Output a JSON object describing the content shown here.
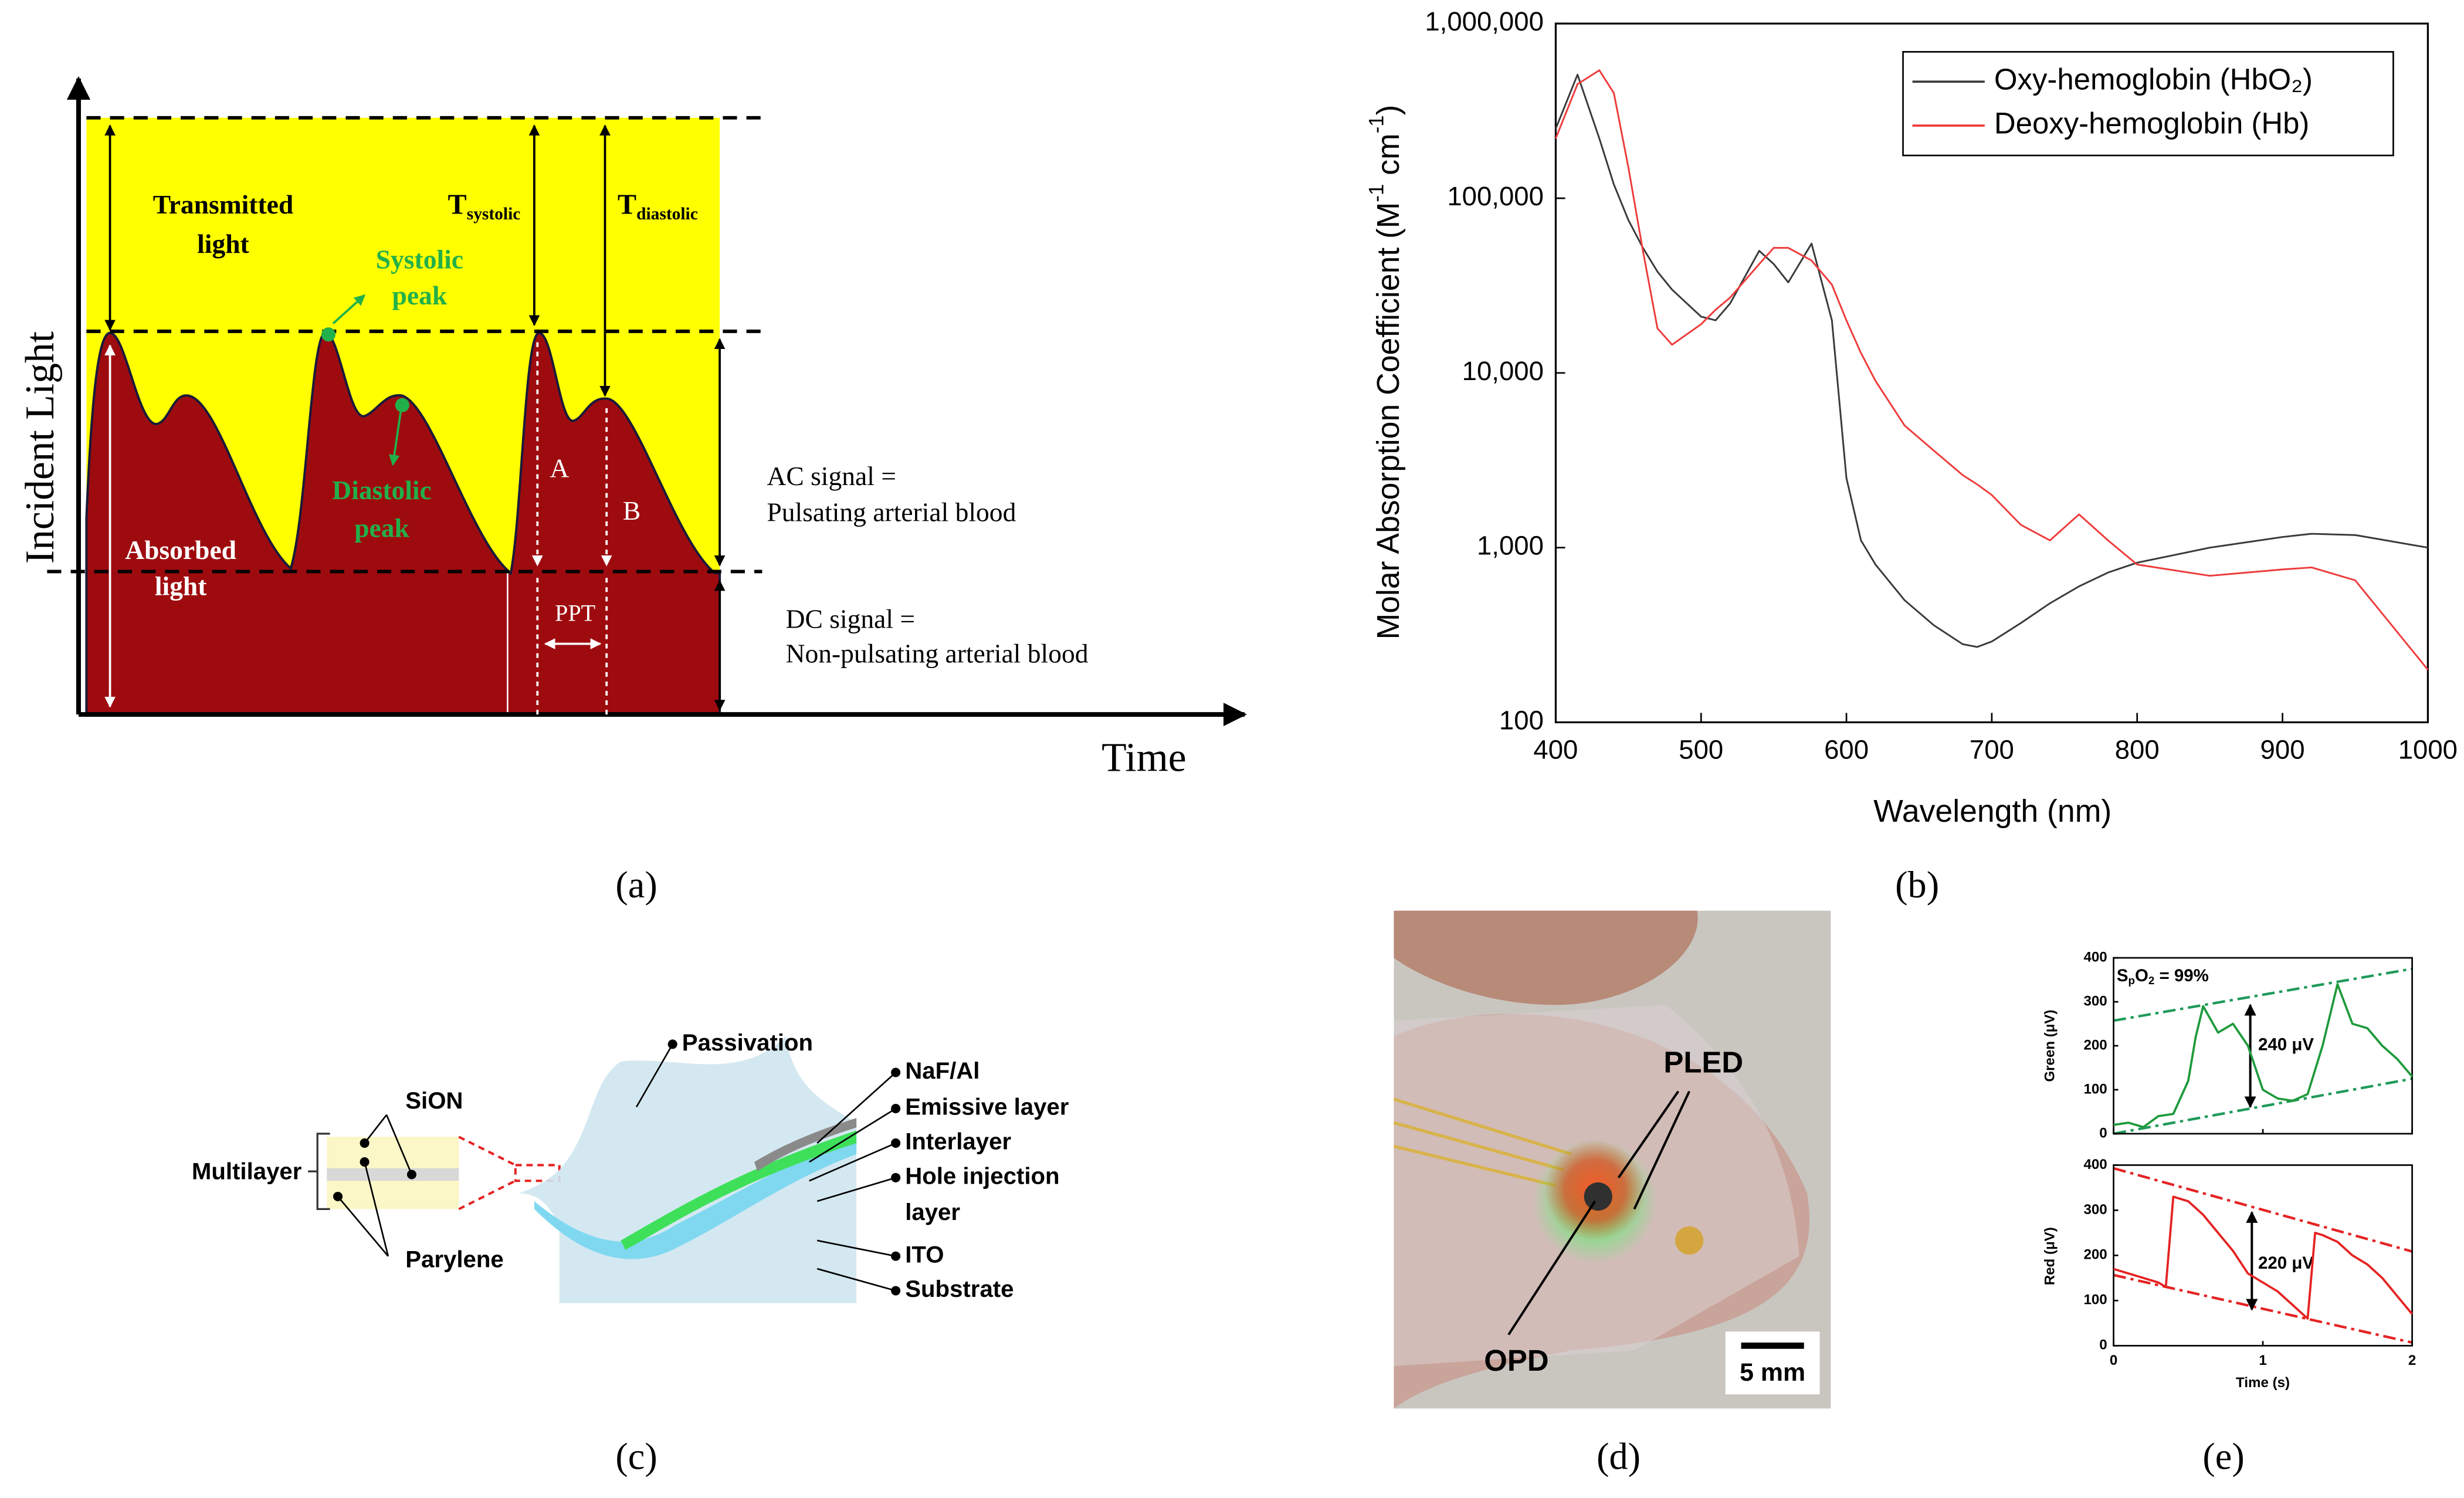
{
  "panel_labels": [
    "(a)",
    "(b)",
    "(c)",
    "(d)",
    "(e)"
  ],
  "diagram_a": {
    "y_axis_label": "Incident Light",
    "x_axis_label": "Time",
    "transmitted": [
      "Transmitted",
      "light"
    ],
    "systolic_peak": [
      "Systolic",
      "peak"
    ],
    "diastolic_peak": [
      "Diastolic",
      "peak"
    ],
    "absorbed": [
      "Absorbed",
      "light"
    ],
    "t_systolic": [
      "T",
      "systolic"
    ],
    "t_diastolic": [
      "T",
      "diastolic"
    ],
    "a": "A",
    "b": "B",
    "ppt": "PPT",
    "ac": [
      "AC signal =",
      "Pulsating arterial blood"
    ],
    "dc": [
      "DC signal =",
      "Non-pulsating arterial blood"
    ]
  },
  "chart_data": [
    {
      "type": "line",
      "x_label": "Wavelength (nm)",
      "y_label": [
        "Molar Absorption Coefficient (M",
        "-1",
        " cm",
        "-1",
        ")"
      ],
      "log_y": true,
      "legend": "upper right",
      "x": [
        400,
        415,
        430,
        440,
        450,
        460,
        470,
        480,
        500,
        510,
        520,
        540,
        550,
        560,
        576,
        590,
        600,
        610,
        620,
        640,
        660,
        680,
        690,
        700,
        720,
        740,
        760,
        780,
        800,
        850,
        900,
        920,
        950,
        1000
      ],
      "series": [
        {
          "name": "Oxy-hemoglobin (HbO₂)",
          "color": "#3a3a3a",
          "values": [
            250000,
            510000,
            220000,
            120000,
            75000,
            52000,
            38000,
            30000,
            21000,
            20000,
            25000,
            50000,
            42000,
            33000,
            55000,
            20000,
            2500,
            1100,
            800,
            500,
            360,
            280,
            270,
            290,
            370,
            480,
            600,
            720,
            820,
            1000,
            1150,
            1200,
            1180,
            1000
          ]
        },
        {
          "name": "Deoxy-hemoglobin (Hb)",
          "color": "#ee3b3b",
          "values": [
            220000,
            450000,
            540000,
            400000,
            150000,
            50000,
            18000,
            14500,
            19000,
            23000,
            27000,
            42000,
            52000,
            52000,
            44000,
            32000,
            20000,
            13000,
            9000,
            5000,
            3600,
            2600,
            2300,
            2000,
            1350,
            1100,
            1550,
            1100,
            800,
            690,
            750,
            770,
            650,
            200
          ]
        }
      ],
      "xlim": [
        400,
        1000
      ],
      "xticks": [
        400,
        500,
        600,
        700,
        800,
        900,
        1000
      ],
      "ylim": [
        100,
        1000000
      ],
      "yticks": [
        100,
        {
          "value": 1000,
          "label": "1,000"
        },
        {
          "value": 10000,
          "label": "10,000"
        },
        {
          "value": 100000,
          "label": "100,000"
        },
        {
          "value": 1000000,
          "label": "1,000,000"
        }
      ]
    },
    {
      "type": "line",
      "y_label": "Green (μV)",
      "annotations": [
        [
          "S",
          "p",
          "O",
          "2",
          " = 99%"
        ],
        "240 μV"
      ],
      "x": [
        0,
        0.1,
        0.2,
        0.3,
        0.4,
        0.5,
        0.55,
        0.6,
        0.7,
        0.8,
        0.9,
        1.0,
        1.1,
        1.2,
        1.3,
        1.4,
        1.5,
        1.6,
        1.7,
        1.8,
        1.9,
        2.0
      ],
      "series": [
        {
          "color": "#1e9a3c",
          "values": [
            20,
            25,
            15,
            40,
            45,
            120,
            220,
            290,
            230,
            250,
            200,
            100,
            80,
            75,
            90,
            200,
            340,
            250,
            240,
            200,
            170,
            130
          ]
        }
      ],
      "xlim": [
        0,
        2
      ],
      "xticks": [
        0,
        1,
        2
      ],
      "ylim": [
        0,
        400
      ],
      "yticks": [
        0,
        100,
        200,
        300,
        400
      ]
    },
    {
      "type": "line",
      "y_label": "Red (μV)",
      "x_label": "Time (s)",
      "annotations": [
        "220 μV"
      ],
      "x": [
        0,
        0.1,
        0.2,
        0.3,
        0.35,
        0.4,
        0.5,
        0.6,
        0.7,
        0.8,
        0.9,
        1.0,
        1.1,
        1.2,
        1.3,
        1.35,
        1.4,
        1.5,
        1.6,
        1.7,
        1.8,
        1.9,
        2.0
      ],
      "series": [
        {
          "color": "#e52222",
          "values": [
            170,
            160,
            150,
            140,
            130,
            330,
            320,
            290,
            250,
            210,
            160,
            140,
            120,
            90,
            60,
            250,
            245,
            230,
            200,
            180,
            150,
            110,
            70
          ]
        }
      ],
      "xlim": [
        0,
        2
      ],
      "xticks": [
        0,
        1,
        2
      ],
      "ylim": [
        0,
        400
      ],
      "yticks": [
        0,
        100,
        200,
        300,
        400
      ]
    }
  ],
  "diagram_c": {
    "passivation": "Passivation",
    "naf_al": "NaF/Al",
    "emissive": "Emissive layer",
    "interlayer": "Interlayer",
    "hole_injection": [
      "Hole injection",
      "layer"
    ],
    "ito": "ITO",
    "substrate": "Substrate",
    "sion": "SiON",
    "multilayer": "Multilayer",
    "parylene": "Parylene"
  },
  "photo_d": {
    "pled": "PLED",
    "opd": "OPD",
    "scale": "5 mm"
  }
}
